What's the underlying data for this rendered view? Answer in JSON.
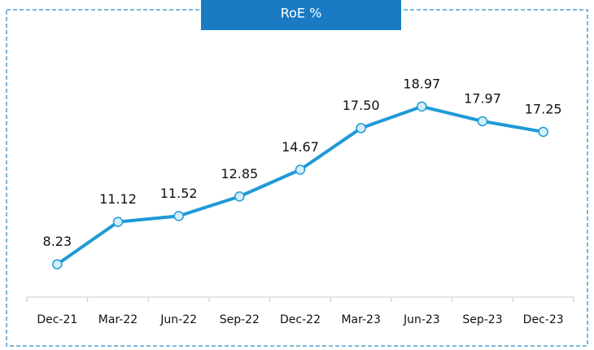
{
  "chart_data": {
    "type": "line",
    "title": "RoE %",
    "categories": [
      "Dec-21",
      "Mar-22",
      "Jun-22",
      "Sep-22",
      "Dec-22",
      "Mar-23",
      "Jun-23",
      "Sep-23",
      "Dec-23"
    ],
    "values": [
      8.23,
      11.12,
      11.52,
      12.85,
      14.67,
      17.5,
      18.97,
      17.97,
      17.25
    ],
    "value_labels": [
      "8.23",
      "11.12",
      "11.52",
      "12.85",
      "14.67",
      "17.50",
      "18.97",
      "17.97",
      "17.25"
    ],
    "color": "#1f9ad6",
    "ylim": [
      6,
      26
    ]
  }
}
